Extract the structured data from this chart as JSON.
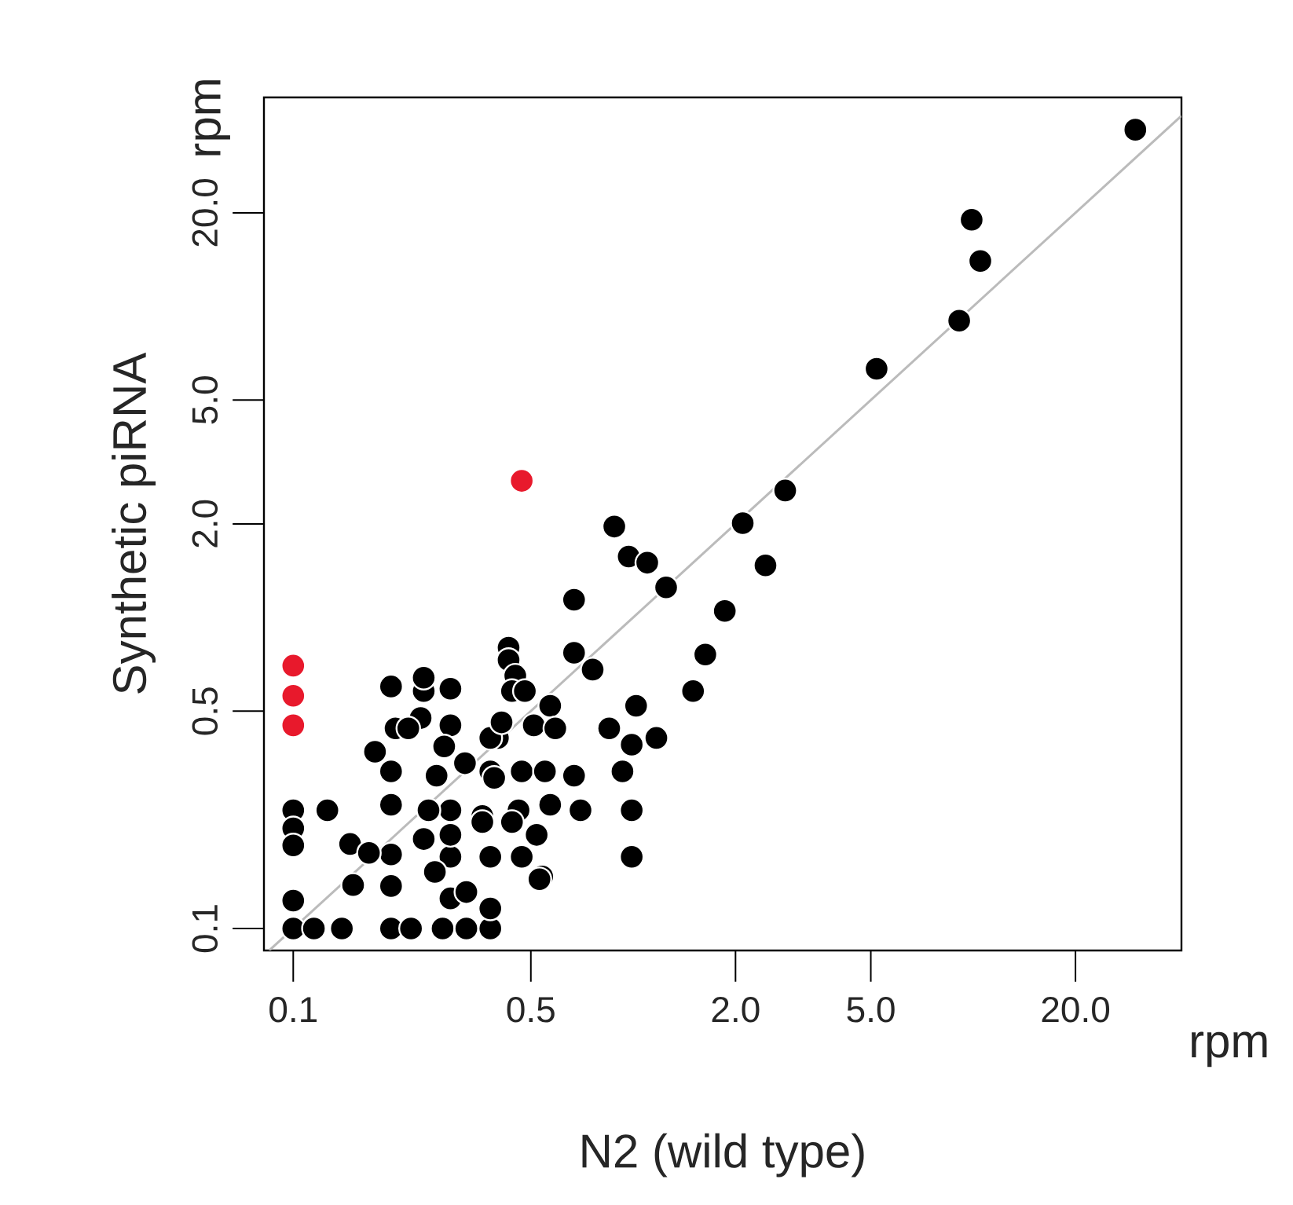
{
  "chart_data": {
    "type": "scatter",
    "xlabel": "N2 (wild type)",
    "ylabel": "Synthetic piRNA",
    "annotations": [
      "rpm",
      "rpm"
    ],
    "log": "xy",
    "marker": "circle",
    "grid": false,
    "xlim": [
      0.082,
      41
    ],
    "ylim": [
      0.085,
      47
    ],
    "xticks": [
      0.1,
      0.5,
      {
        "value": 2,
        "label": "2.0"
      },
      {
        "value": 5,
        "label": "5.0"
      },
      {
        "value": 20,
        "label": "20.0"
      }
    ],
    "yticks": [
      0.1,
      0.5,
      {
        "value": 2,
        "label": "2.0"
      },
      {
        "value": 5,
        "label": "5.0"
      },
      {
        "value": 20,
        "label": "20.0"
      }
    ],
    "series": [
      {
        "type": "line",
        "marker": "none",
        "color": "#bbbbbb",
        "x": [
          0.085,
          41
        ],
        "values": [
          0.085,
          41
        ]
      },
      {
        "color": "#000000",
        "x": [
          30,
          9.9,
          10.5,
          9.1,
          5.2,
          2.8,
          2.1,
          0.88,
          0.97,
          1.1,
          1.25,
          2.45,
          1.86,
          1.63,
          1.5,
          0.67,
          0.67,
          0.76,
          1.02,
          0.85,
          0.99,
          1.17,
          0.93,
          0.99,
          0.99,
          0.29,
          0.43,
          0.43,
          0.45,
          0.44,
          0.48,
          0.57,
          0.51,
          0.59,
          0.29,
          0.4,
          0.32,
          0.47,
          0.55,
          0.38,
          0.29,
          0.36,
          0.46,
          0.57,
          0.7,
          0.52,
          0.29,
          0.38,
          0.47,
          0.54,
          0.1,
          0.1,
          0.1,
          0.1,
          0.1,
          0.126,
          0.147,
          0.15,
          0.115,
          0.139,
          0.194,
          0.2,
          0.174,
          0.194,
          0.194,
          0.194,
          0.194,
          0.194,
          0.167,
          0.242,
          0.242,
          0.237,
          0.218,
          0.278,
          0.264,
          0.25,
          0.242,
          0.29,
          0.261,
          0.29,
          0.323,
          0.222,
          0.275,
          0.323,
          0.38,
          0.38,
          0.36,
          0.53,
          0.44,
          0.39,
          0.67,
          0.38,
          0.41
        ],
        "values": [
          37,
          19,
          14,
          9,
          6.3,
          2.56,
          2.01,
          1.96,
          1.57,
          1.5,
          1.25,
          1.47,
          1.05,
          0.76,
          0.58,
          1.14,
          0.77,
          0.68,
          0.52,
          0.44,
          0.39,
          0.41,
          0.32,
          0.24,
          0.17,
          0.59,
          0.8,
          0.73,
          0.65,
          0.58,
          0.58,
          0.52,
          0.45,
          0.44,
          0.45,
          0.41,
          0.34,
          0.32,
          0.32,
          0.32,
          0.24,
          0.23,
          0.24,
          0.25,
          0.24,
          0.2,
          0.17,
          0.17,
          0.17,
          0.147,
          0.24,
          0.21,
          0.185,
          0.123,
          0.1,
          0.24,
          0.187,
          0.138,
          0.1,
          0.1,
          0.6,
          0.44,
          0.37,
          0.32,
          0.25,
          0.173,
          0.137,
          0.1,
          0.175,
          0.58,
          0.64,
          0.475,
          0.44,
          0.385,
          0.31,
          0.24,
          0.194,
          0.2,
          0.152,
          0.125,
          0.131,
          0.1,
          0.1,
          0.1,
          0.1,
          0.116,
          0.22,
          0.144,
          0.22,
          0.305,
          0.31,
          0.41,
          0.46
        ]
      },
      {
        "color": "#e8192c",
        "x": [
          0.47,
          0.1,
          0.1,
          0.1
        ],
        "values": [
          2.75,
          0.7,
          0.56,
          0.45
        ]
      }
    ]
  }
}
